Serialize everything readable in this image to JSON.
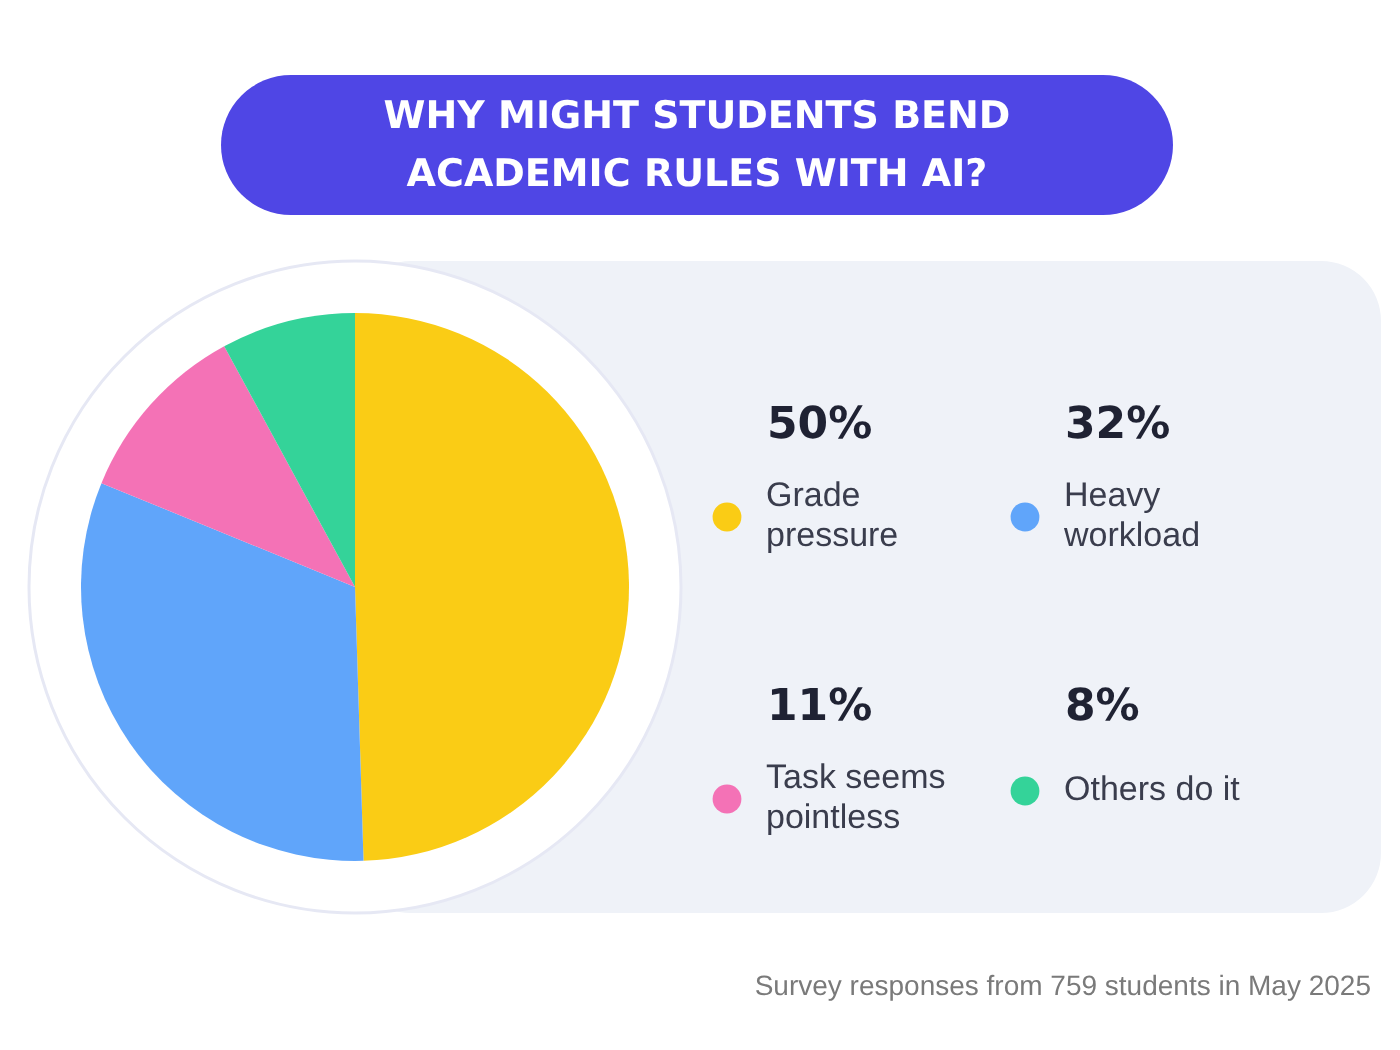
{
  "chart_data": {
    "type": "pie",
    "title": "WHY MIGHT STUDENTS BEND ACADEMIC RULES WITH AI?",
    "categories": [
      "Grade pressure",
      "Heavy workload",
      "Task seems pointless",
      "Others do it"
    ],
    "values": [
      50,
      32,
      11,
      8
    ],
    "colors": [
      "#facc15",
      "#60a5fa",
      "#f472b6",
      "#34d399"
    ],
    "value_labels": [
      "50%",
      "32%",
      "11%",
      "8%"
    ],
    "legend": "right",
    "annotations": [
      "Survey responses from 759 students in May 2025"
    ]
  }
}
